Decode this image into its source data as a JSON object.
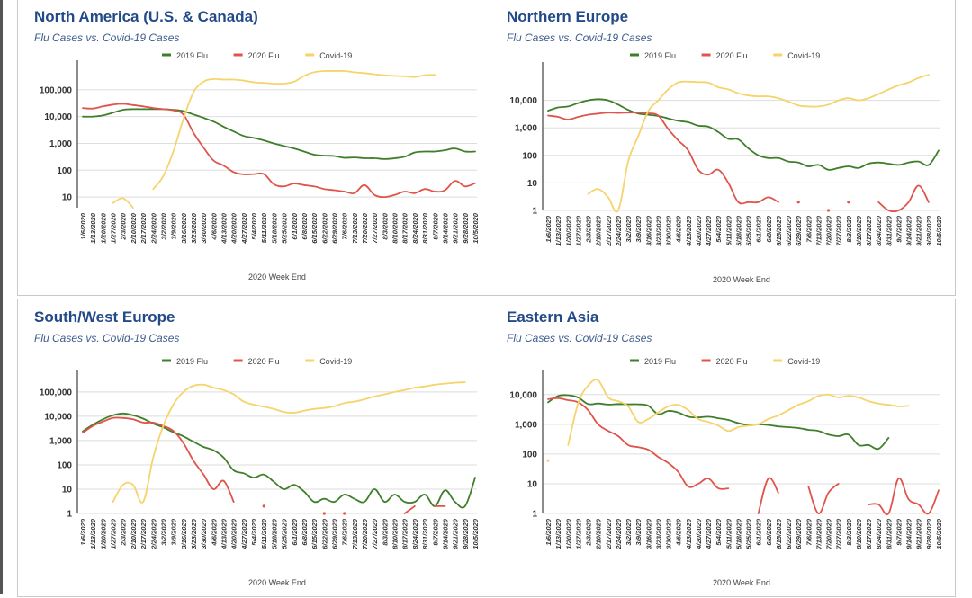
{
  "legend": [
    {
      "name": "2019 Flu",
      "color": "#3f7f2b"
    },
    {
      "name": "2020 Flu",
      "color": "#e0544b"
    },
    {
      "name": "Covid-19",
      "color": "#f6d36b"
    }
  ],
  "chart_data": [
    {
      "type": "line",
      "title": "North America (U.S. & Canada)",
      "subtitle": "Flu Cases vs. Covid-19 Cases",
      "xlabel": "2020 Week End",
      "ylabel": "",
      "yscale": "log",
      "ylim": [
        4,
        500000
      ],
      "yticks": [
        10,
        100,
        1000,
        10000,
        100000
      ],
      "ytick_labels": [
        "10",
        "100",
        "1,000",
        "10,000",
        "100,000"
      ],
      "grid": true,
      "legend_position": "top-center",
      "x": [
        "1/6/2020",
        "1/13/2020",
        "1/20/2020",
        "1/27/2020",
        "2/3/2020",
        "2/10/2020",
        "2/17/2020",
        "2/24/2020",
        "3/2/2020",
        "3/9/2020",
        "3/16/2020",
        "3/23/2020",
        "3/30/2020",
        "4/6/2020",
        "4/13/2020",
        "4/20/2020",
        "4/27/2020",
        "5/4/2020",
        "5/11/2020",
        "5/18/2020",
        "5/25/2020",
        "6/1/2020",
        "6/8/2020",
        "6/15/2020",
        "6/22/2020",
        "6/29/2020",
        "7/6/2020",
        "7/13/2020",
        "7/20/2020",
        "7/27/2020",
        "8/3/2020",
        "8/10/2020",
        "8/17/2020",
        "8/24/2020",
        "8/31/2020",
        "9/7/2020",
        "9/14/2020",
        "9/21/2020",
        "9/28/2020",
        "10/5/2020"
      ],
      "series": [
        {
          "name": "2019 Flu",
          "values": [
            10000,
            10000,
            11000,
            14000,
            18000,
            19000,
            19000,
            19000,
            19000,
            18000,
            16000,
            12000,
            9000,
            6500,
            4200,
            2800,
            1900,
            1600,
            1300,
            1000,
            800,
            650,
            500,
            380,
            350,
            340,
            290,
            300,
            280,
            280,
            260,
            280,
            320,
            460,
            500,
            500,
            560,
            650,
            500,
            500
          ]
        },
        {
          "name": "2020 Flu",
          "values": [
            21000,
            20000,
            24000,
            28000,
            30000,
            27000,
            24000,
            21000,
            19000,
            17000,
            12000,
            2500,
            700,
            230,
            150,
            85,
            70,
            72,
            72,
            30,
            25,
            32,
            28,
            25,
            20,
            18,
            16,
            14,
            28,
            12,
            10,
            12,
            16,
            14,
            20,
            16,
            18,
            40,
            25,
            33
          ]
        },
        {
          "name": "Covid-19",
          "values": [
            null,
            null,
            null,
            6,
            9,
            4,
            null,
            20,
            60,
            500,
            8000,
            80000,
            200000,
            250000,
            240000,
            240000,
            220000,
            190000,
            180000,
            170000,
            170000,
            200000,
            330000,
            450000,
            520000,
            560000,
            540000,
            450000,
            420000,
            380000,
            350000,
            330000,
            320000,
            300000,
            350000,
            360000,
            null,
            null,
            null,
            null
          ]
        }
      ]
    },
    {
      "type": "line",
      "title": "Northern Europe",
      "subtitle": "Flu Cases vs. Covid-19 Cases",
      "xlabel": "2020 Week End",
      "ylabel": "",
      "yscale": "log",
      "ylim": [
        1,
        100000
      ],
      "yticks": [
        1,
        10,
        100,
        1000,
        10000
      ],
      "ytick_labels": [
        "1",
        "10",
        "100",
        "1,000",
        "10,000"
      ],
      "grid": true,
      "legend_position": "top-center",
      "x": [
        "1/6/2020",
        "1/13/2020",
        "1/20/2020",
        "1/27/2020",
        "2/3/2020",
        "2/10/2020",
        "2/17/2020",
        "2/24/2020",
        "3/2/2020",
        "3/9/2020",
        "3/16/2020",
        "3/23/2020",
        "3/30/2020",
        "4/6/2020",
        "4/13/2020",
        "4/20/2020",
        "4/27/2020",
        "5/4/2020",
        "5/11/2020",
        "5/18/2020",
        "5/25/2020",
        "6/1/2020",
        "6/8/2020",
        "6/15/2020",
        "6/22/2020",
        "6/29/2020",
        "7/6/2020",
        "7/13/2020",
        "7/20/2020",
        "7/27/2020",
        "8/3/2020",
        "8/10/2020",
        "8/17/2020",
        "8/24/2020",
        "8/31/2020",
        "9/7/2020",
        "9/14/2020",
        "9/21/2020",
        "9/28/2020",
        "10/5/2020"
      ],
      "series": [
        {
          "name": "2019 Flu",
          "values": [
            4200,
            5500,
            6000,
            8000,
            10000,
            11000,
            10000,
            7000,
            4500,
            3300,
            3000,
            2700,
            2200,
            1800,
            1600,
            1200,
            1100,
            700,
            400,
            380,
            180,
            100,
            80,
            80,
            60,
            55,
            40,
            45,
            30,
            35,
            40,
            35,
            50,
            55,
            50,
            45,
            55,
            60,
            45,
            150
          ]
        },
        {
          "name": "2020 Flu",
          "values": [
            2800,
            2500,
            2000,
            2500,
            3000,
            3300,
            3600,
            3500,
            3600,
            3600,
            3400,
            2800,
            900,
            350,
            150,
            30,
            20,
            30,
            10,
            2,
            2,
            2,
            3,
            2,
            null,
            2,
            null,
            null,
            1,
            null,
            2,
            null,
            null,
            2,
            1,
            1,
            2,
            8,
            2,
            null
          ]
        },
        {
          "name": "Covid-19",
          "values": [
            null,
            null,
            null,
            null,
            4,
            6,
            3,
            1,
            60,
            500,
            4000,
            10000,
            25000,
            45000,
            48000,
            46000,
            44000,
            30000,
            25000,
            18000,
            15000,
            14000,
            14000,
            12000,
            9000,
            6500,
            6000,
            6000,
            7000,
            10000,
            12000,
            10000,
            12000,
            17000,
            25000,
            35000,
            45000,
            65000,
            85000,
            null
          ]
        }
      ]
    },
    {
      "type": "line",
      "title": "South/West Europe",
      "subtitle": "Flu Cases vs. Covid-19 Cases",
      "xlabel": "2020 Week End",
      "ylabel": "",
      "yscale": "log",
      "ylim": [
        1,
        300000
      ],
      "yticks": [
        1,
        10,
        100,
        1000,
        10000,
        100000
      ],
      "ytick_labels": [
        "1",
        "10",
        "100",
        "1,000",
        "10,000",
        "100,000"
      ],
      "grid": true,
      "legend_position": "top-center",
      "x": [
        "1/6/2020",
        "1/13/2020",
        "1/20/2020",
        "1/27/2020",
        "2/3/2020",
        "2/10/2020",
        "2/17/2020",
        "2/24/2020",
        "3/2/2020",
        "3/9/2020",
        "3/16/2020",
        "3/23/2020",
        "3/30/2020",
        "4/6/2020",
        "4/13/2020",
        "4/20/2020",
        "4/27/2020",
        "5/4/2020",
        "5/11/2020",
        "5/18/2020",
        "5/25/2020",
        "6/1/2020",
        "6/8/2020",
        "6/15/2020",
        "6/22/2020",
        "6/29/2020",
        "7/6/2020",
        "7/13/2020",
        "7/20/2020",
        "7/27/2020",
        "8/3/2020",
        "8/10/2020",
        "8/17/2020",
        "8/24/2020",
        "8/31/2020",
        "9/7/2020",
        "9/14/2020",
        "9/21/2020",
        "9/28/2020",
        "10/5/2020"
      ],
      "series": [
        {
          "name": "2019 Flu",
          "values": [
            2400,
            4500,
            7500,
            11000,
            13000,
            11000,
            8000,
            5000,
            3500,
            2200,
            1500,
            900,
            550,
            400,
            200,
            60,
            45,
            30,
            40,
            20,
            10,
            15,
            8,
            3,
            4,
            3,
            6,
            4,
            3,
            10,
            3,
            6,
            3,
            3,
            6,
            2,
            9,
            3,
            2,
            30
          ]
        },
        {
          "name": "2020 Flu",
          "values": [
            2100,
            4000,
            6000,
            8500,
            8500,
            7500,
            5500,
            5500,
            4000,
            2500,
            800,
            150,
            40,
            10,
            22,
            3,
            null,
            null,
            2,
            null,
            null,
            null,
            null,
            null,
            1,
            null,
            1,
            null,
            null,
            null,
            null,
            null,
            1,
            2,
            null,
            2,
            2,
            null,
            null,
            null
          ]
        },
        {
          "name": "Covid-19",
          "values": [
            null,
            null,
            null,
            3,
            15,
            15,
            3,
            200,
            4000,
            30000,
            100000,
            180000,
            200000,
            150000,
            120000,
            80000,
            40000,
            30000,
            25000,
            20000,
            15000,
            14000,
            17000,
            20000,
            22000,
            26000,
            35000,
            40000,
            50000,
            65000,
            80000,
            100000,
            120000,
            150000,
            170000,
            200000,
            220000,
            240000,
            250000,
            null
          ]
        }
      ]
    },
    {
      "type": "line",
      "title": "Eastern Asia",
      "subtitle": "Flu Cases vs. Covid-19 Cases",
      "xlabel": "2020 Week End",
      "ylabel": "",
      "yscale": "log",
      "ylim": [
        1,
        30000
      ],
      "yticks": [
        1,
        10,
        100,
        1000,
        10000
      ],
      "ytick_labels": [
        "1",
        "10",
        "100",
        "1,000",
        "10,000"
      ],
      "grid": true,
      "legend_position": "top-center",
      "x": [
        "1/6/2020",
        "1/13/2020",
        "1/20/2020",
        "1/27/2020",
        "2/3/2020",
        "2/10/2020",
        "2/17/2020",
        "2/24/2020",
        "3/2/2020",
        "3/9/2020",
        "3/16/2020",
        "3/23/2020",
        "3/30/2020",
        "4/6/2020",
        "4/13/2020",
        "4/20/2020",
        "4/27/2020",
        "5/4/2020",
        "5/11/2020",
        "5/18/2020",
        "5/25/2020",
        "6/1/2020",
        "6/8/2020",
        "6/15/2020",
        "6/22/2020",
        "6/29/2020",
        "7/6/2020",
        "7/13/2020",
        "7/20/2020",
        "7/27/2020",
        "8/3/2020",
        "8/10/2020",
        "8/17/2020",
        "8/24/2020",
        "8/31/2020",
        "9/7/2020",
        "9/14/2020",
        "9/21/2020",
        "9/28/2020",
        "10/5/2020"
      ],
      "series": [
        {
          "name": "2019 Flu",
          "values": [
            5500,
            9000,
            9500,
            8000,
            4800,
            5000,
            4600,
            4800,
            4700,
            4700,
            4200,
            2200,
            2800,
            2500,
            1800,
            1700,
            1800,
            1600,
            1400,
            1100,
            950,
            1000,
            950,
            850,
            800,
            750,
            650,
            600,
            450,
            400,
            450,
            200,
            200,
            150,
            350,
            null,
            null,
            null,
            null,
            null
          ]
        },
        {
          "name": "2020 Flu",
          "values": [
            7000,
            7500,
            6500,
            5500,
            3000,
            1000,
            600,
            400,
            200,
            170,
            140,
            80,
            50,
            25,
            8,
            10,
            15,
            7,
            7,
            null,
            null,
            1,
            15,
            5,
            null,
            null,
            8,
            1,
            5,
            10,
            null,
            null,
            2,
            2,
            1,
            15,
            3,
            2,
            1,
            6
          ]
        },
        {
          "name": "Covid-19",
          "values": [
            60,
            null,
            200,
            5000,
            20000,
            30000,
            8000,
            6000,
            4000,
            1200,
            1500,
            2500,
            4000,
            4500,
            3000,
            1500,
            1200,
            900,
            600,
            800,
            900,
            1000,
            1500,
            2000,
            3000,
            4500,
            6000,
            9000,
            10000,
            8000,
            9000,
            8000,
            6000,
            5000,
            4500,
            4000,
            4200,
            null,
            null,
            null
          ]
        }
      ]
    }
  ]
}
